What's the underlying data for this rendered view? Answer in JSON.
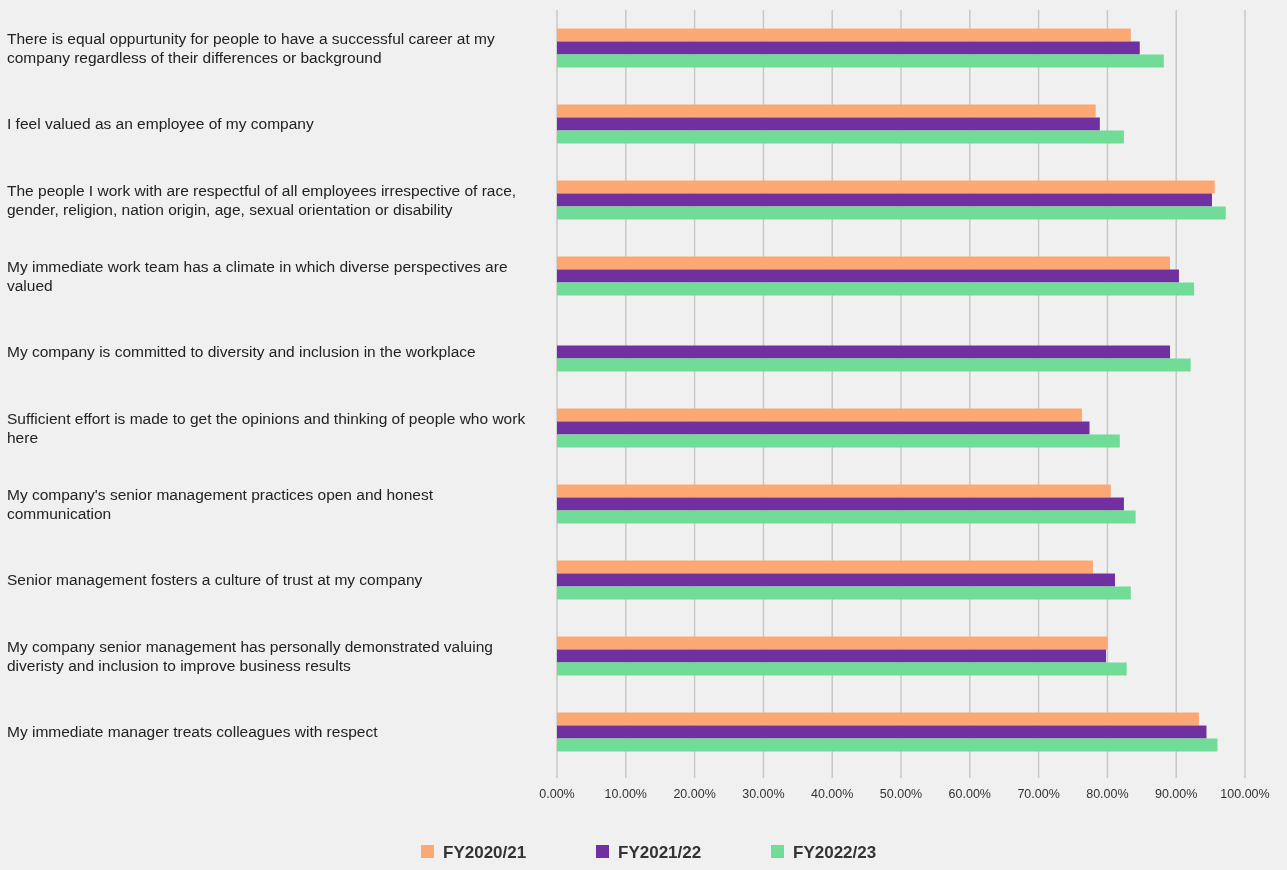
{
  "chart_data": {
    "type": "bar",
    "orientation": "horizontal",
    "categories": [
      "There is equal oppurtunity for people to have a successful career at my company regardless of their differences or background",
      "I feel valued as an employee of my company",
      "The people I work with are respectful of all employees irrespective of race, gender, religion, nation origin, age, sexual orientation or disability",
      "My immediate work team has a climate in which diverse perspectives are valued",
      "My company is committed to diversity and inclusion in the workplace",
      "Sufficient effort is made to get the opinions and thinking of people who work here",
      "My company's senior management practices open and honest communication",
      "Senior management fosters a culture of trust at my company",
      "My company senior management has personally demonstrated valuing diveristy and inclusion to improve business results",
      "My immediate manager treats colleagues with respect"
    ],
    "series": [
      {
        "name": "FY2020/21",
        "color": "#fca874",
        "values": [
          83.4,
          78.3,
          95.6,
          89.1,
          null,
          76.3,
          80.5,
          77.9,
          80.0,
          93.3
        ]
      },
      {
        "name": "FY2021/22",
        "color": "#7030a0",
        "values": [
          84.7,
          78.9,
          95.2,
          90.4,
          89.1,
          77.4,
          82.4,
          81.1,
          79.8,
          94.4
        ]
      },
      {
        "name": "FY2022/23",
        "color": "#70dc98",
        "values": [
          88.2,
          82.4,
          97.2,
          92.6,
          92.1,
          81.8,
          84.1,
          83.4,
          82.8,
          96.0
        ]
      }
    ],
    "xlim": [
      0,
      100
    ],
    "xticks": [
      {
        "value": 0,
        "label": "0.00%"
      },
      {
        "value": 10,
        "label": "10.00%"
      },
      {
        "value": 20,
        "label": "20.00%"
      },
      {
        "value": 30,
        "label": "30.00%"
      },
      {
        "value": 40,
        "label": "40.00%"
      },
      {
        "value": 50,
        "label": "50.00%"
      },
      {
        "value": 60,
        "label": "60.00%"
      },
      {
        "value": 70,
        "label": "70.00%"
      },
      {
        "value": 80,
        "label": "80.00%"
      },
      {
        "value": 90,
        "label": "90.00%"
      },
      {
        "value": 100,
        "label": "100.00%"
      }
    ],
    "grid": "x",
    "legend": "bottom"
  }
}
